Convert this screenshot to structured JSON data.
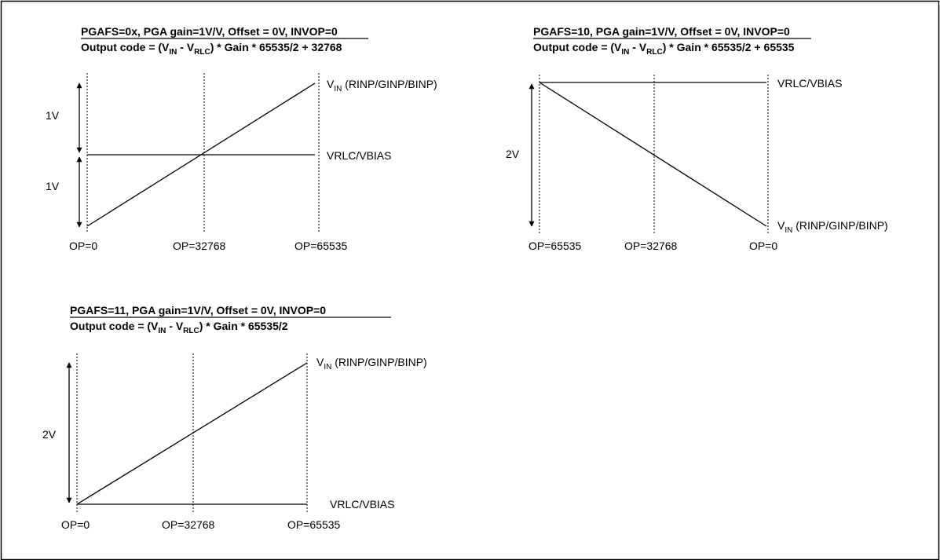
{
  "panels": [
    {
      "title": "PGAFS=0x, PGA gain=1V/V, Offset = 0V, INVOP=0",
      "formula": {
        "prefix": "Output code = (V",
        "sub1": "IN",
        "mid": " - V",
        "sub2": "RLC",
        "suffix": ") * Gain * 65535/2 + 32768"
      },
      "vin_label": {
        "main": "V",
        "sub": "IN",
        "rest": " (RINP/GINP/BINP)"
      },
      "vrlc_label": "VRLC/VBIAS",
      "range_labels": [
        "1V",
        "1V"
      ],
      "op_labels": [
        "OP=0",
        "OP=32768",
        "OP=65535"
      ]
    },
    {
      "title": "PGAFS=10, PGA gain=1V/V, Offset = 0V, INVOP=0",
      "formula": {
        "prefix": "Output code = (V",
        "sub1": "IN",
        "mid": " - V",
        "sub2": "RLC",
        "suffix": ") * Gain * 65535/2 + 65535"
      },
      "vin_label": {
        "main": "V",
        "sub": "IN",
        "rest": " (RINP/GINP/BINP)"
      },
      "vrlc_label": "VRLC/VBIAS",
      "range_labels": [
        "2V"
      ],
      "op_labels": [
        "OP=65535",
        "OP=32768",
        "OP=0"
      ]
    },
    {
      "title": "PGAFS=11, PGA gain=1V/V, Offset = 0V, INVOP=0",
      "formula": {
        "prefix": "Output code = (V",
        "sub1": "IN",
        "mid": " - V",
        "sub2": "RLC",
        "suffix": ") * Gain * 65535/2"
      },
      "vin_label": {
        "main": "V",
        "sub": "IN",
        "rest": " (RINP/GINP/BINP)"
      },
      "vrlc_label": "VRLC/VBIAS",
      "range_labels": [
        "2V"
      ],
      "op_labels": [
        "OP=0",
        "OP=32768",
        "OP=65535"
      ]
    }
  ]
}
